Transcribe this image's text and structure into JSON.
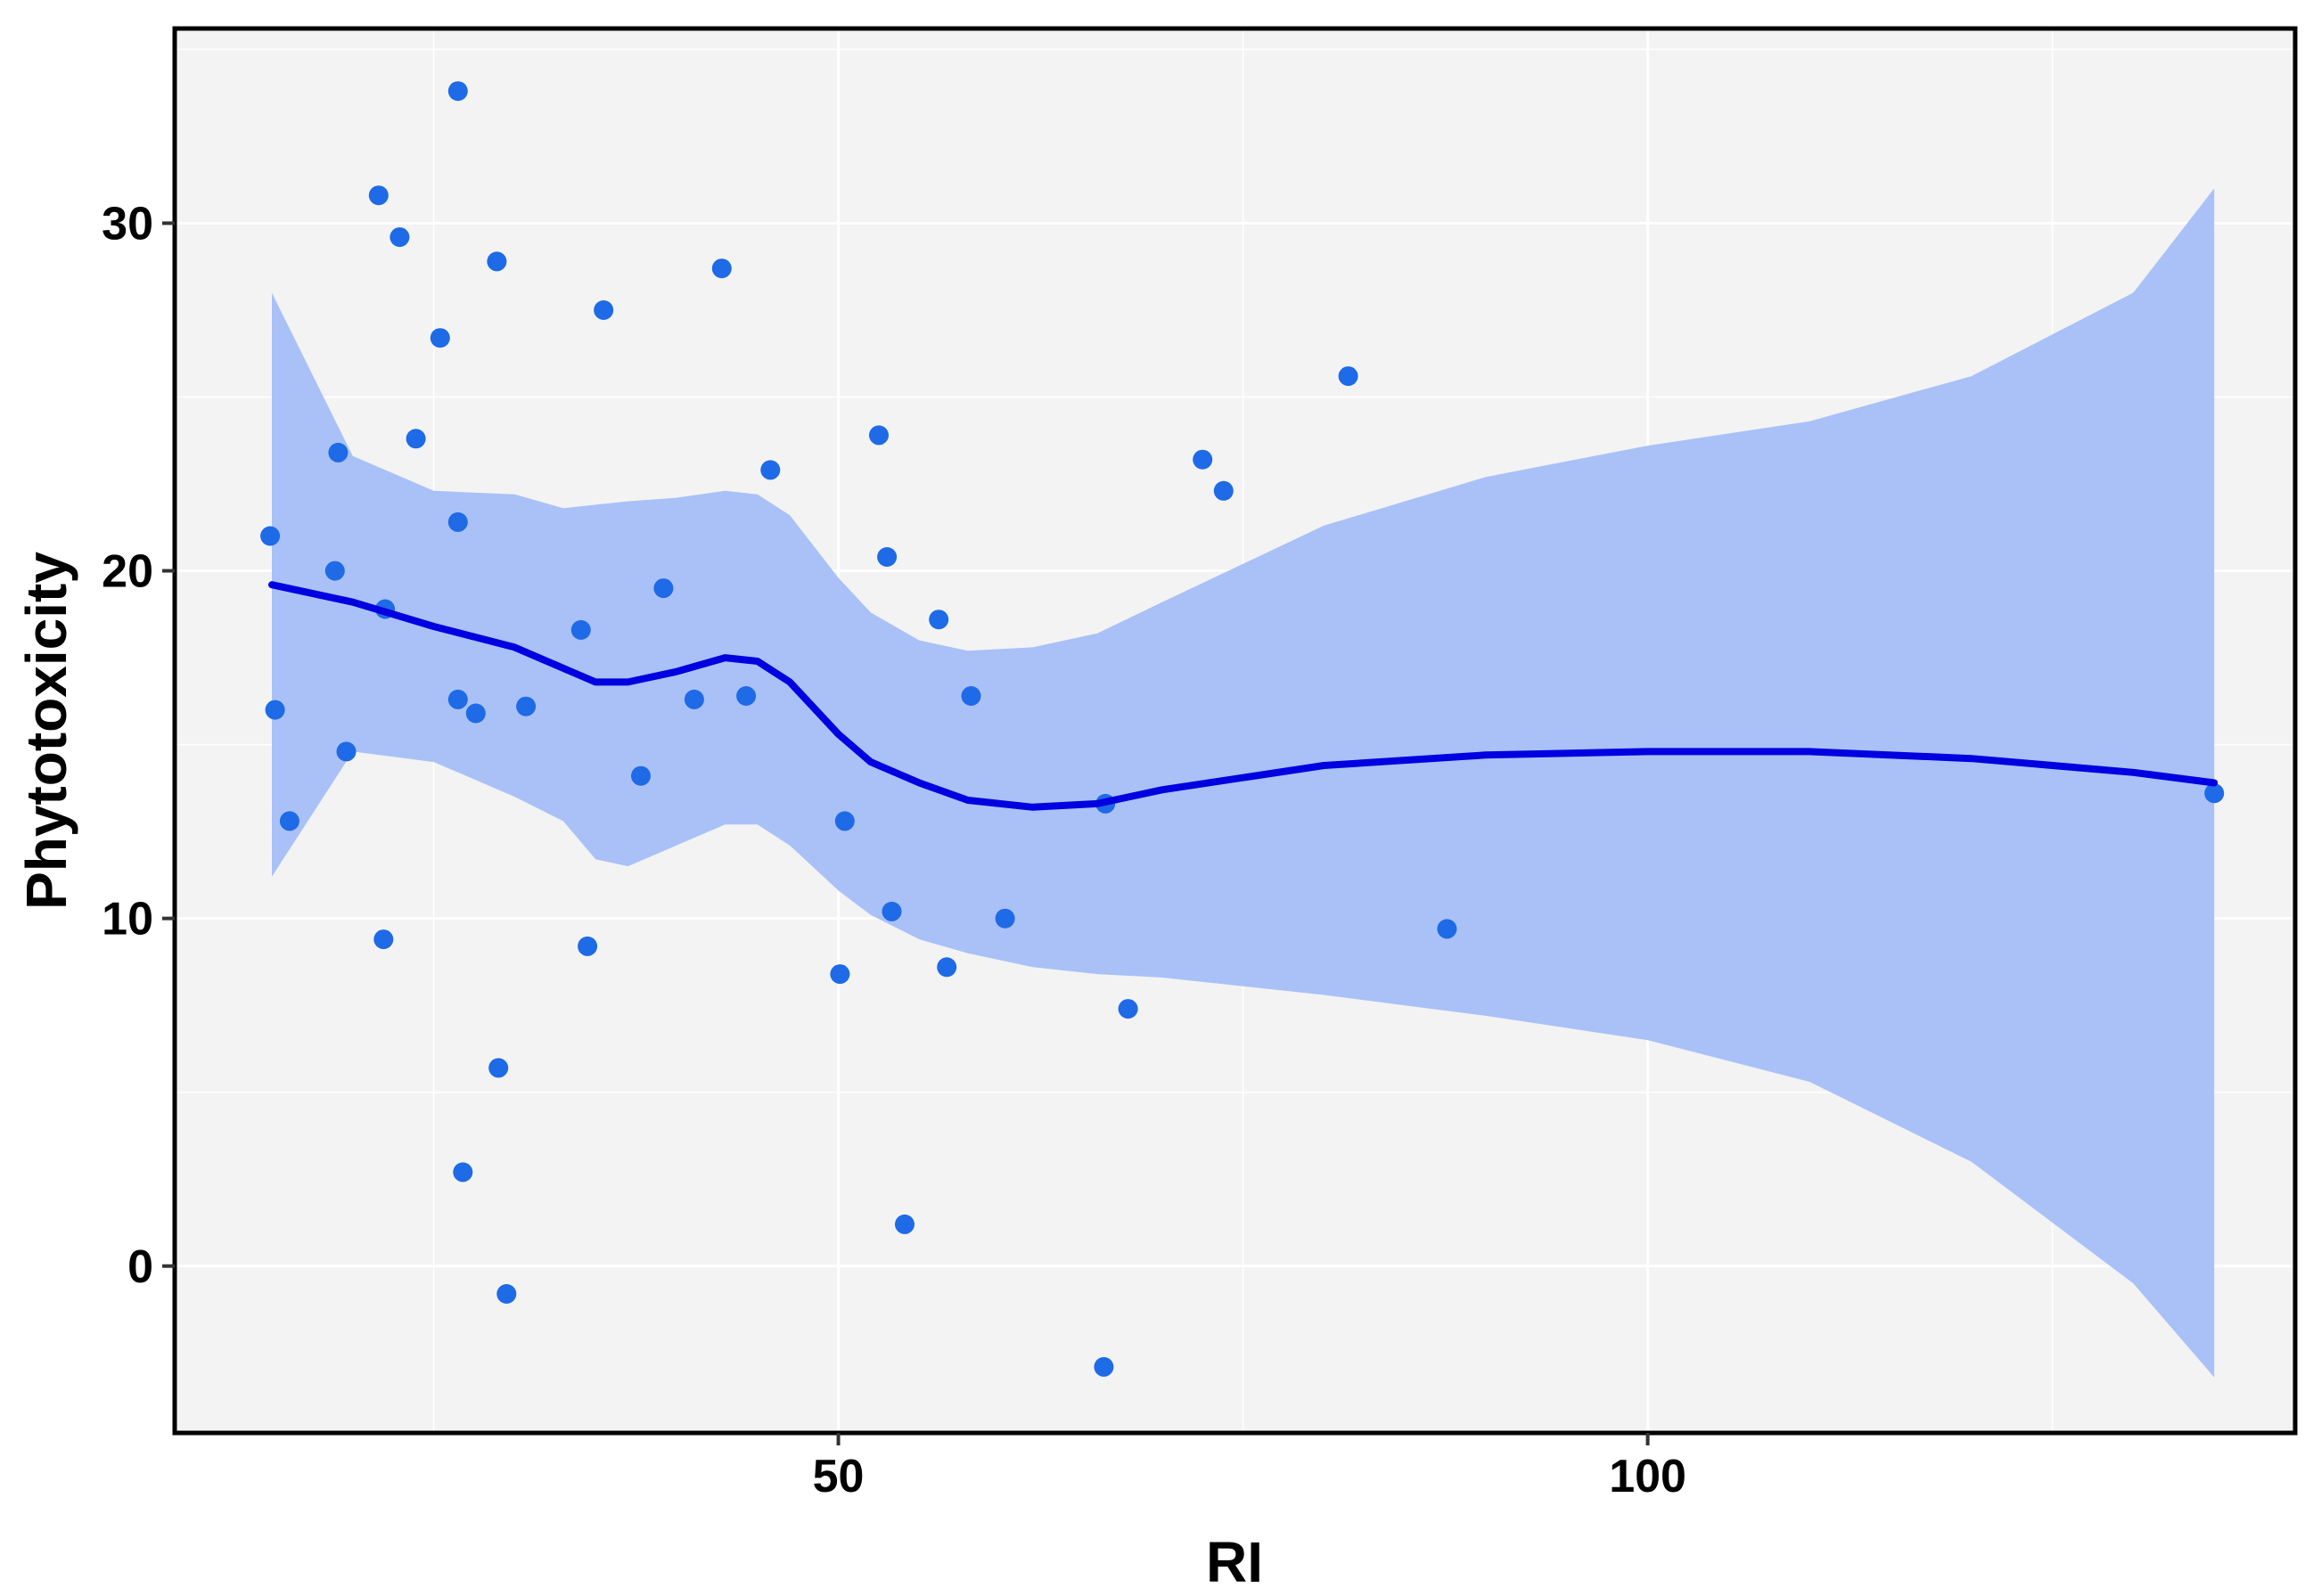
{
  "chart_data": {
    "type": "scatter",
    "title": "",
    "xlabel": "RI",
    "ylabel": "Phytotoxicity",
    "xlim": [
      9,
      140
    ],
    "ylim": [
      -4.8,
      35.6
    ],
    "x_ticks": [
      50,
      100
    ],
    "y_ticks": [
      0,
      10,
      20,
      30
    ],
    "grid": true,
    "legend": "none",
    "colors": {
      "panel_bg": "#f3f3f3",
      "grid": "#ffffff",
      "points": "#1f6ae6",
      "smooth_line": "#0000e0",
      "ribbon": "#a9c1f7",
      "border": "#000000"
    },
    "points": [
      {
        "x": 14.9,
        "y": 21.0
      },
      {
        "x": 15.2,
        "y": 16.0
      },
      {
        "x": 16.1,
        "y": 12.8
      },
      {
        "x": 18.9,
        "y": 20.0
      },
      {
        "x": 19.1,
        "y": 23.4
      },
      {
        "x": 19.6,
        "y": 14.8
      },
      {
        "x": 21.6,
        "y": 30.8
      },
      {
        "x": 22.0,
        "y": 18.9
      },
      {
        "x": 21.9,
        "y": 9.4
      },
      {
        "x": 22.9,
        "y": 29.6
      },
      {
        "x": 23.9,
        "y": 23.8
      },
      {
        "x": 25.4,
        "y": 26.7
      },
      {
        "x": 26.5,
        "y": 33.8
      },
      {
        "x": 26.5,
        "y": 21.4
      },
      {
        "x": 26.5,
        "y": 16.3
      },
      {
        "x": 26.8,
        "y": 2.7
      },
      {
        "x": 27.6,
        "y": 15.9
      },
      {
        "x": 28.9,
        "y": 28.9
      },
      {
        "x": 29.0,
        "y": 5.7
      },
      {
        "x": 29.5,
        "y": -0.8
      },
      {
        "x": 30.7,
        "y": 16.1
      },
      {
        "x": 34.1,
        "y": 18.3
      },
      {
        "x": 34.5,
        "y": 9.2
      },
      {
        "x": 35.5,
        "y": 27.5
      },
      {
        "x": 37.8,
        "y": 14.1
      },
      {
        "x": 39.2,
        "y": 19.5
      },
      {
        "x": 41.1,
        "y": 16.3
      },
      {
        "x": 42.8,
        "y": 28.7
      },
      {
        "x": 44.3,
        "y": 16.4
      },
      {
        "x": 45.8,
        "y": 22.9
      },
      {
        "x": 50.1,
        "y": 8.4
      },
      {
        "x": 50.4,
        "y": 12.8
      },
      {
        "x": 52.5,
        "y": 23.9
      },
      {
        "x": 53.0,
        "y": 20.4
      },
      {
        "x": 53.3,
        "y": 10.2
      },
      {
        "x": 54.1,
        "y": 1.2
      },
      {
        "x": 56.2,
        "y": 18.6
      },
      {
        "x": 56.7,
        "y": 8.6
      },
      {
        "x": 58.2,
        "y": 16.4
      },
      {
        "x": 60.3,
        "y": 10.0
      },
      {
        "x": 66.5,
        "y": 13.3
      },
      {
        "x": 66.4,
        "y": -2.9
      },
      {
        "x": 67.9,
        "y": 7.4
      },
      {
        "x": 72.5,
        "y": 23.2
      },
      {
        "x": 73.8,
        "y": 22.3
      },
      {
        "x": 81.5,
        "y": 25.6
      },
      {
        "x": 87.6,
        "y": 9.7
      },
      {
        "x": 135.0,
        "y": 13.6
      }
    ],
    "smooth": {
      "x": [
        15,
        20,
        25,
        30,
        33,
        35,
        37,
        40,
        43,
        45,
        47,
        50,
        52,
        55,
        58,
        62,
        66,
        70,
        80,
        90,
        100,
        110,
        120,
        130,
        135
      ],
      "y": [
        19.6,
        19.1,
        18.4,
        17.8,
        17.2,
        16.8,
        16.8,
        17.1,
        17.5,
        17.4,
        16.8,
        15.3,
        14.5,
        13.9,
        13.4,
        13.2,
        13.3,
        13.7,
        14.4,
        14.7,
        14.8,
        14.8,
        14.6,
        14.2,
        13.9
      ],
      "lower": [
        11.2,
        14.8,
        14.5,
        13.5,
        12.8,
        11.7,
        11.5,
        12.1,
        12.7,
        12.7,
        12.1,
        10.8,
        10.1,
        9.4,
        9.0,
        8.6,
        8.4,
        8.3,
        7.8,
        7.2,
        6.5,
        5.3,
        3.0,
        -0.5,
        -3.2
      ],
      "upper": [
        28.0,
        23.3,
        22.3,
        22.2,
        21.8,
        21.9,
        22.0,
        22.1,
        22.3,
        22.2,
        21.6,
        19.8,
        18.8,
        18.0,
        17.7,
        17.8,
        18.2,
        19.1,
        21.3,
        22.7,
        23.6,
        24.3,
        25.6,
        28.0,
        31.0
      ]
    }
  }
}
